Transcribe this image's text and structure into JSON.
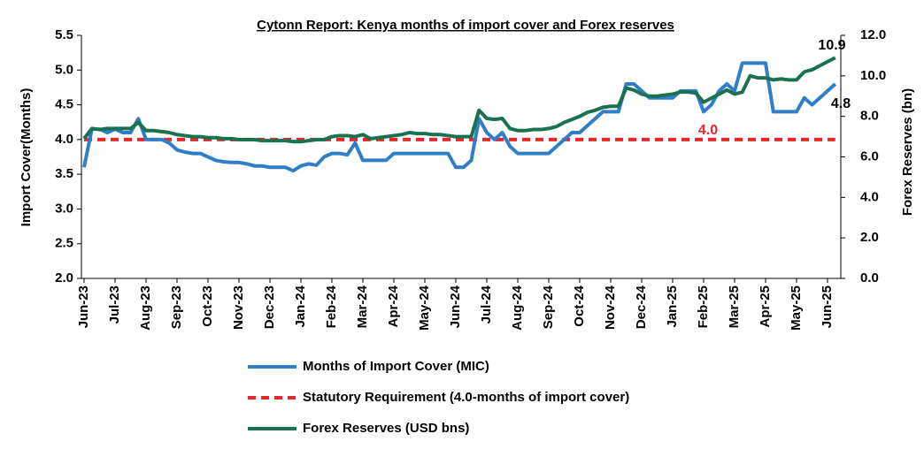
{
  "chart_data": {
    "type": "line",
    "title": "Cytonn Report: Kenya months of import cover and Forex reserves",
    "y_label": "Import Cover(Months)",
    "y2_label": "Forex Reserves (bn)",
    "categories": [
      "Jun-23",
      null,
      null,
      null,
      "Jul-23",
      null,
      null,
      null,
      "Aug-23",
      null,
      null,
      null,
      "Sep-23",
      null,
      null,
      null,
      "Oct-23",
      null,
      null,
      null,
      "Nov-23",
      null,
      null,
      null,
      "Dec-23",
      null,
      null,
      null,
      "Jan-24",
      null,
      null,
      null,
      "Feb-24",
      null,
      null,
      null,
      "Mar-24",
      null,
      null,
      null,
      "Apr-24",
      null,
      null,
      null,
      "May-24",
      null,
      null,
      null,
      "Jun-24",
      null,
      null,
      null,
      "Jul-24",
      null,
      null,
      null,
      "Aug-24",
      null,
      null,
      null,
      "Sep-24",
      null,
      null,
      null,
      "Oct-24",
      null,
      null,
      null,
      "Nov-24",
      null,
      null,
      null,
      "Dec-24",
      null,
      null,
      null,
      "Jan-25",
      null,
      null,
      null,
      "Feb-25",
      null,
      null,
      null,
      "Mar-25",
      null,
      null,
      null,
      "Apr-25",
      null,
      null,
      null,
      "May-25",
      null,
      null,
      null,
      "Jun-25",
      null
    ],
    "series": [
      {
        "name": "Months of Import Cover (MIC)",
        "color": "#2f7ec7",
        "dash": false,
        "axis": "y",
        "values": [
          3.6,
          4.15,
          4.15,
          4.1,
          4.15,
          4.1,
          4.1,
          4.3,
          4.0,
          4.0,
          4.0,
          3.95,
          3.85,
          3.82,
          3.8,
          3.8,
          3.75,
          3.7,
          3.68,
          3.67,
          3.67,
          3.65,
          3.62,
          3.62,
          3.6,
          3.6,
          3.6,
          3.55,
          3.62,
          3.65,
          3.63,
          3.75,
          3.8,
          3.8,
          3.78,
          3.95,
          3.7,
          3.7,
          3.7,
          3.7,
          3.8,
          3.8,
          3.8,
          3.8,
          3.8,
          3.8,
          3.8,
          3.8,
          3.6,
          3.6,
          3.7,
          4.3,
          4.1,
          4.0,
          4.1,
          3.9,
          3.8,
          3.8,
          3.8,
          3.8,
          3.8,
          3.9,
          4.0,
          4.1,
          4.1,
          4.2,
          4.3,
          4.4,
          4.4,
          4.4,
          4.8,
          4.8,
          4.7,
          4.6,
          4.6,
          4.6,
          4.6,
          4.7,
          4.7,
          4.7,
          4.4,
          4.5,
          4.7,
          4.8,
          4.7,
          5.1,
          5.1,
          5.1,
          5.1,
          4.4,
          4.4,
          4.4,
          4.4,
          4.6,
          4.5,
          4.6,
          4.7,
          4.8
        ]
      },
      {
        "name": "Statutory Requirement (4.0-months of import cover)",
        "color": "#e8262b",
        "dash": true,
        "axis": "y",
        "values": [
          4,
          4,
          4,
          4,
          4,
          4,
          4,
          4,
          4,
          4,
          4,
          4,
          4,
          4,
          4,
          4,
          4,
          4,
          4,
          4,
          4,
          4,
          4,
          4,
          4,
          4,
          4,
          4,
          4,
          4,
          4,
          4,
          4,
          4,
          4,
          4,
          4,
          4,
          4,
          4,
          4,
          4,
          4,
          4,
          4,
          4,
          4,
          4,
          4,
          4,
          4,
          4,
          4,
          4,
          4,
          4,
          4,
          4,
          4,
          4,
          4,
          4,
          4,
          4,
          4,
          4,
          4,
          4,
          4,
          4,
          4,
          4,
          4,
          4,
          4,
          4,
          4,
          4,
          4,
          4,
          4,
          4,
          4,
          4,
          4,
          4,
          4,
          4,
          4,
          4,
          4,
          4,
          4,
          4,
          4,
          4,
          4,
          4
        ]
      },
      {
        "name": "Forex Reserves (USD bns)",
        "color": "#1a7150",
        "dash": false,
        "axis": "y2",
        "values": [
          6.9,
          7.4,
          7.35,
          7.4,
          7.4,
          7.4,
          7.4,
          7.7,
          7.3,
          7.3,
          7.25,
          7.2,
          7.1,
          7.05,
          7.0,
          7.0,
          6.95,
          6.95,
          6.9,
          6.9,
          6.85,
          6.85,
          6.85,
          6.8,
          6.8,
          6.8,
          6.8,
          6.75,
          6.75,
          6.8,
          6.85,
          6.85,
          7.0,
          7.05,
          7.05,
          7.0,
          7.1,
          6.9,
          6.95,
          7.0,
          7.05,
          7.1,
          7.2,
          7.15,
          7.15,
          7.1,
          7.1,
          7.05,
          7.0,
          7.0,
          7.0,
          8.3,
          7.9,
          7.85,
          7.9,
          7.4,
          7.3,
          7.3,
          7.35,
          7.35,
          7.4,
          7.5,
          7.7,
          7.85,
          8.0,
          8.2,
          8.3,
          8.45,
          8.5,
          8.5,
          9.4,
          9.3,
          9.1,
          9.0,
          9.0,
          9.05,
          9.1,
          9.2,
          9.2,
          9.15,
          8.7,
          8.9,
          9.1,
          9.3,
          9.1,
          9.2,
          10.0,
          9.9,
          9.9,
          9.8,
          9.85,
          9.8,
          9.8,
          10.2,
          10.3,
          10.5,
          10.7,
          10.9
        ]
      }
    ],
    "annotations": [
      {
        "text": "4.0"
      },
      {
        "text": "4.8"
      },
      {
        "text": "10.9"
      }
    ],
    "ylim": [
      2.0,
      5.5
    ],
    "yticks": [
      {
        "value": 2.0,
        "label": "2.0"
      },
      {
        "value": 2.5,
        "label": "2.5"
      },
      {
        "value": 3.0,
        "label": "3.0"
      },
      {
        "value": 3.5,
        "label": "3.5"
      },
      {
        "value": 4.0,
        "label": "4.0"
      },
      {
        "value": 4.5,
        "label": "4.5"
      },
      {
        "value": 5.0,
        "label": "5.0"
      },
      {
        "value": 5.5,
        "label": "5.5"
      }
    ],
    "y2lim": [
      0,
      12
    ],
    "y2ticks": [
      {
        "value": 0,
        "label": "0.0"
      },
      {
        "value": 2,
        "label": "2.0"
      },
      {
        "value": 4,
        "label": "4.0"
      },
      {
        "value": 6,
        "label": "6.0"
      },
      {
        "value": 8,
        "label": "8.0"
      },
      {
        "value": 10,
        "label": "10.0"
      },
      {
        "value": 12,
        "label": "12.0"
      }
    ],
    "grid": false,
    "legend": "bottom"
  }
}
